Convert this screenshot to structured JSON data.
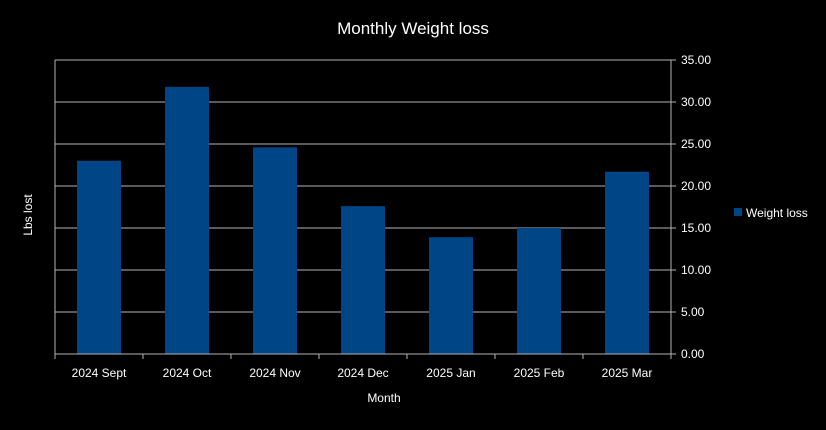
{
  "chart_data": {
    "type": "bar",
    "title": "Monthly Weight loss",
    "xlabel": "Month",
    "ylabel": "Lbs lost",
    "categories": [
      "2024 Sept",
      "2024 Oct",
      "2024 Nov",
      "2024 Dec",
      "2025 Jan",
      "2025 Feb",
      "2025 Mar"
    ],
    "series": [
      {
        "name": "Weight loss",
        "values": [
          23.0,
          31.8,
          24.6,
          17.6,
          13.9,
          15.0,
          21.7
        ],
        "color": "#004586"
      }
    ],
    "ylim": [
      0,
      35
    ],
    "yticks": [
      "0.00",
      "5.00",
      "10.00",
      "15.00",
      "20.00",
      "25.00",
      "30.00",
      "35.00"
    ],
    "y_axis_side": "right",
    "grid": true,
    "legend_position": "right",
    "background_color": "#000000",
    "text_color": "#ffffff",
    "grid_color": "#b3b3b3"
  }
}
